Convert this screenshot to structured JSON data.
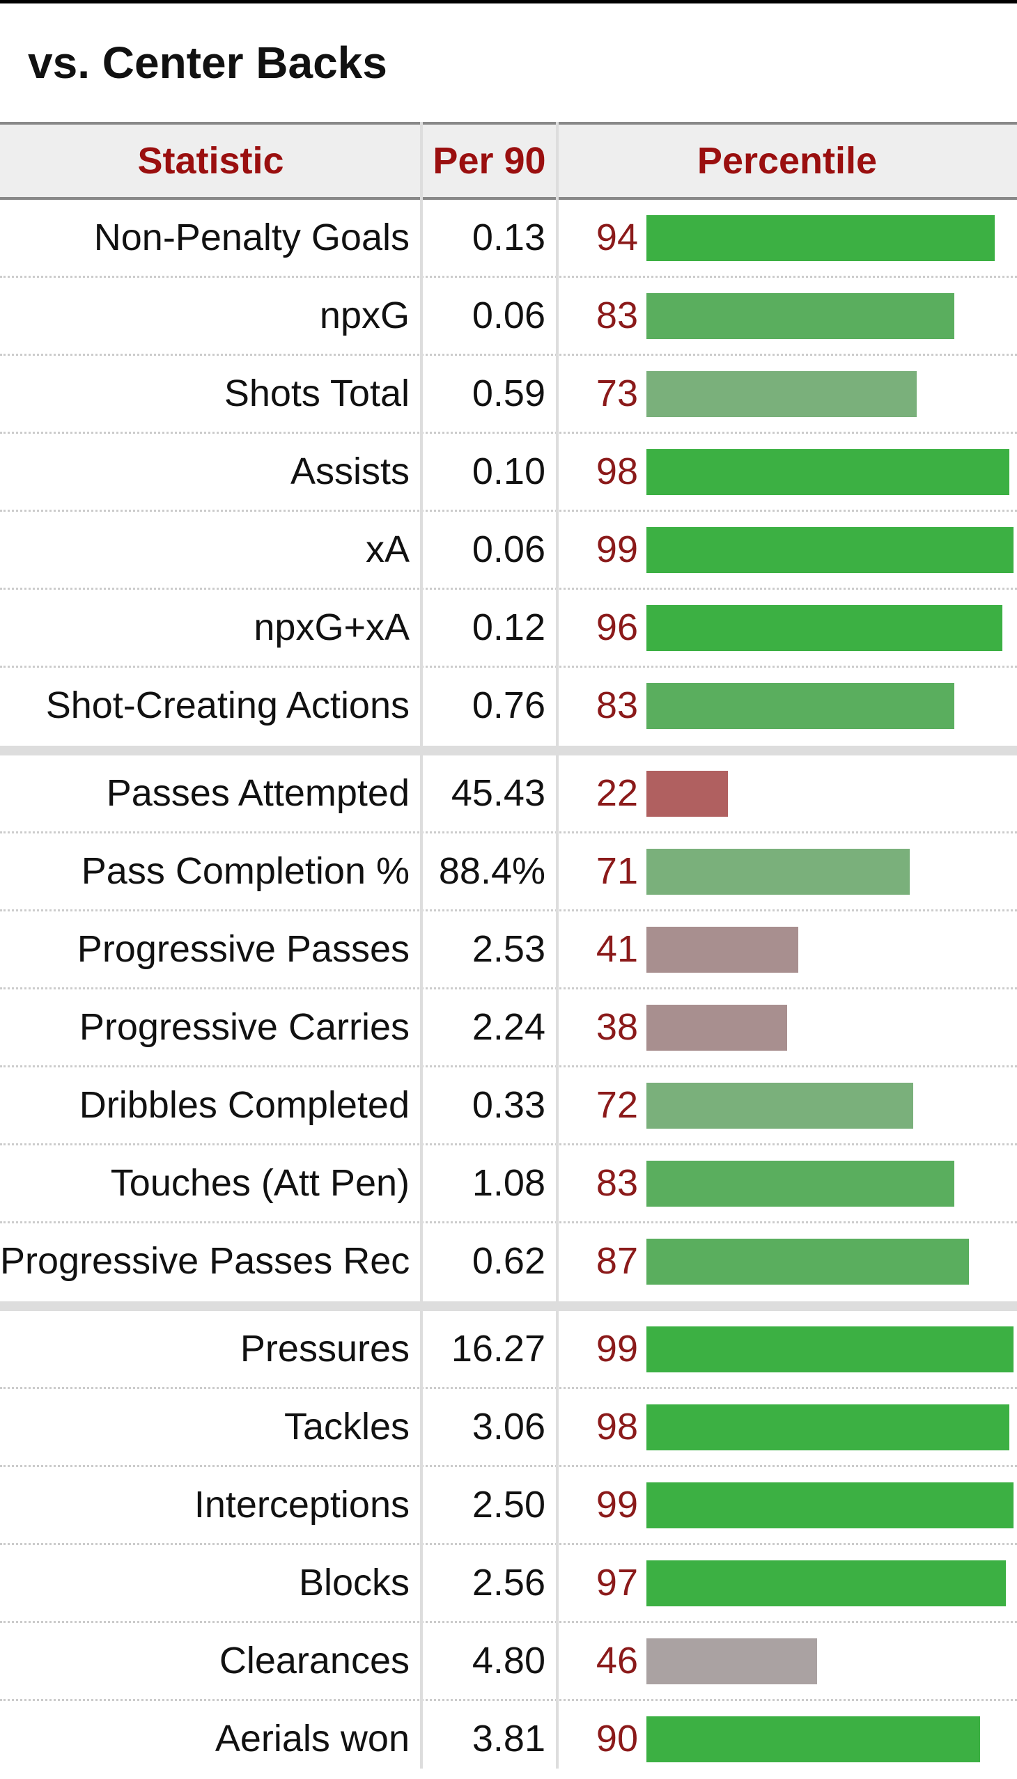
{
  "title": "vs. Center Backs",
  "columns": {
    "statistic": "Statistic",
    "per90": "Per 90",
    "percentile": "Percentile"
  },
  "colors": {
    "high": "#3cb043",
    "mid_high": "#5aae5e",
    "mid": "#7ab07b",
    "neutral": "#aaa2a2",
    "mid_low": "#a88f8f",
    "low": "#b06060",
    "percentile_text": "#8b1a1a",
    "header_text": "#9a0f0f"
  },
  "groups": [
    {
      "rows": [
        {
          "stat": "Non-Penalty Goals",
          "per90": "0.13",
          "percentile": 94
        },
        {
          "stat": "npxG",
          "per90": "0.06",
          "percentile": 83
        },
        {
          "stat": "Shots Total",
          "per90": "0.59",
          "percentile": 73
        },
        {
          "stat": "Assists",
          "per90": "0.10",
          "percentile": 98
        },
        {
          "stat": "xA",
          "per90": "0.06",
          "percentile": 99
        },
        {
          "stat": "npxG+xA",
          "per90": "0.12",
          "percentile": 96
        },
        {
          "stat": "Shot-Creating Actions",
          "per90": "0.76",
          "percentile": 83
        }
      ]
    },
    {
      "rows": [
        {
          "stat": "Passes Attempted",
          "per90": "45.43",
          "percentile": 22
        },
        {
          "stat": "Pass Completion %",
          "per90": "88.4%",
          "percentile": 71
        },
        {
          "stat": "Progressive Passes",
          "per90": "2.53",
          "percentile": 41
        },
        {
          "stat": "Progressive Carries",
          "per90": "2.24",
          "percentile": 38
        },
        {
          "stat": "Dribbles Completed",
          "per90": "0.33",
          "percentile": 72
        },
        {
          "stat": "Touches (Att Pen)",
          "per90": "1.08",
          "percentile": 83
        },
        {
          "stat": "Progressive Passes Rec",
          "per90": "0.62",
          "percentile": 87
        }
      ]
    },
    {
      "rows": [
        {
          "stat": "Pressures",
          "per90": "16.27",
          "percentile": 99
        },
        {
          "stat": "Tackles",
          "per90": "3.06",
          "percentile": 98
        },
        {
          "stat": "Interceptions",
          "per90": "2.50",
          "percentile": 99
        },
        {
          "stat": "Blocks",
          "per90": "2.56",
          "percentile": 97
        },
        {
          "stat": "Clearances",
          "per90": "4.80",
          "percentile": 46
        },
        {
          "stat": "Aerials won",
          "per90": "3.81",
          "percentile": 90
        }
      ]
    }
  ]
}
